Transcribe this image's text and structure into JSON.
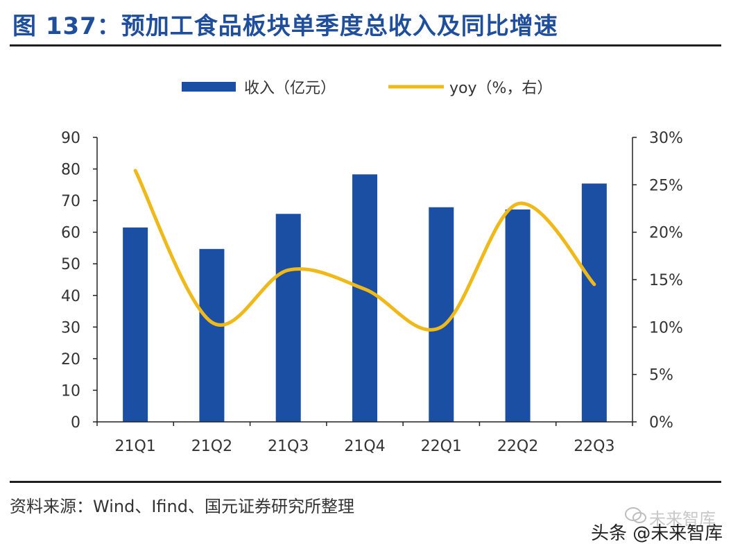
{
  "figure": {
    "title": "图 137：预加工食品板块单季度总收入及同比增速",
    "source": "资料来源：Wind、Ifind、国元证券研究所整理"
  },
  "watermark": {
    "text": "头条 @未来智库",
    "ghost_text": "未来智库",
    "icon": "wechat-icon"
  },
  "colors": {
    "title": "#1f4e9c",
    "bar": "#1a4fa3",
    "line": "#f0b91a",
    "axis": "#222222",
    "text": "#333333"
  },
  "chart_data": {
    "type": "bar+line",
    "categories": [
      "21Q1",
      "21Q2",
      "21Q3",
      "21Q4",
      "22Q1",
      "22Q2",
      "22Q3"
    ],
    "series": [
      {
        "name": "收入（亿元）",
        "type": "bar",
        "axis": "left",
        "values": [
          61.5,
          54.7,
          65.8,
          78.3,
          67.9,
          67.2,
          75.4
        ]
      },
      {
        "name": "yoy（%，右）",
        "type": "line",
        "axis": "right",
        "smooth": true,
        "values": [
          26.5,
          10.5,
          16.0,
          14.0,
          10.0,
          23.0,
          14.5
        ]
      }
    ],
    "left_axis": {
      "min": 0,
      "max": 90,
      "ticks": [
        "0",
        "10",
        "20",
        "30",
        "40",
        "50",
        "60",
        "70",
        "80",
        "90"
      ]
    },
    "right_axis": {
      "min": 0,
      "max": 30,
      "ticks": [
        "0%",
        "5%",
        "10%",
        "15%",
        "20%",
        "25%",
        "30%"
      ]
    },
    "legend_position": "top-center",
    "grid": false
  }
}
